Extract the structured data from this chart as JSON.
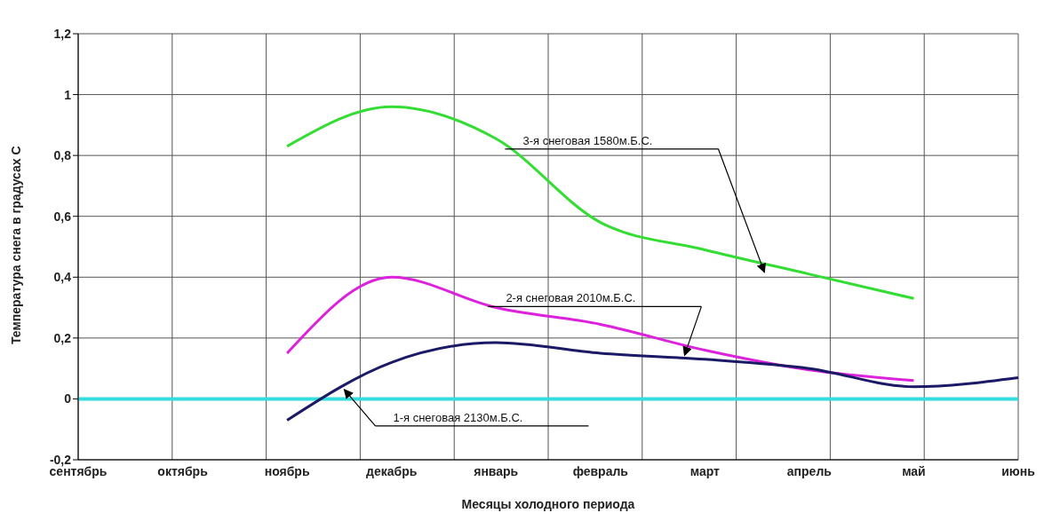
{
  "chart_data": {
    "type": "line",
    "xlabel": "Месяцы холодного  периода",
    "ylabel": "Температура снега в градусах С",
    "categories": [
      "сентябрь",
      "октябрь",
      "ноябрь",
      "декабрь",
      "январь",
      "февраль",
      "март",
      "апрель",
      "май",
      "июнь"
    ],
    "series": [
      {
        "color": "#33dd33",
        "values": [
          null,
          null,
          0.83,
          0.96,
          0.855,
          0.58,
          0.49,
          0.41,
          0.33,
          null
        ]
      },
      {
        "color": "#dd22dd",
        "values": [
          null,
          null,
          0.15,
          0.4,
          0.3,
          0.245,
          0.16,
          0.095,
          0.06,
          null
        ]
      },
      {
        "color": "#1a1a66",
        "values": [
          null,
          null,
          -0.07,
          0.12,
          0.185,
          0.15,
          0.13,
          0.1,
          0.04,
          0.07
        ]
      }
    ],
    "ylim": [
      -0.2,
      1.2
    ],
    "yticks": [
      {
        "value": -0.2,
        "label": "-0,2"
      },
      0,
      {
        "value": 0.2,
        "label": "0,2"
      },
      {
        "value": 0.4,
        "label": "0,4"
      },
      {
        "value": 0.6,
        "label": "0,6"
      },
      {
        "value": 0.8,
        "label": "0,8"
      },
      1,
      {
        "value": 1.2,
        "label": "1,2"
      }
    ],
    "grid": true,
    "marker": "none",
    "line_style": "solid",
    "ref_lines": [
      {
        "axis": "y",
        "value": 0,
        "color": "#33dddd"
      }
    ],
    "annotations": [
      "3-я снеговая 1580м.Б.С.",
      "2-я снеговая 2010м.Б.С.",
      "1-я снеговая 2130м.Б.С."
    ]
  }
}
